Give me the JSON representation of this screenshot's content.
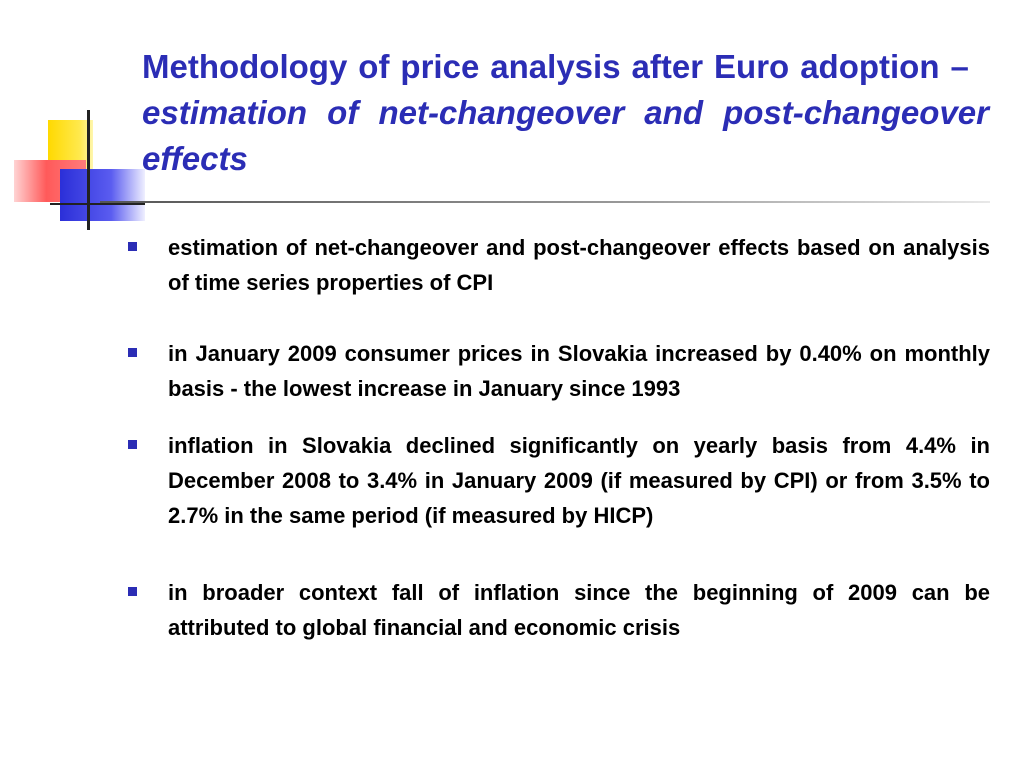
{
  "slide": {
    "title_part1": "Methodology of price analysis after Euro adoption –",
    "title_part2": "estimation of net-changeover and post-changeover effects",
    "bullets": [
      "estimation of net-changeover and post-changeover effects based on analysis of time series properties of CPI",
      "in January 2009 consumer prices in Slovakia increased by 0.40% on monthly basis - the lowest increase in January since 1993",
      "inflation in Slovakia declined significantly on yearly basis from 4.4% in December 2008 to 3.4% in January 2009 (if measured by CPI) or from 3.5% to 2.7% in the same period (if measured by HICP)",
      "in broader context fall of inflation since the beginning of 2009 can be attributed to global financial and economic crisis"
    ]
  },
  "colors": {
    "title": "#2b2db5",
    "bullet_marker": "#2b2db5",
    "body_text": "#000000",
    "logo_yellow": "#ffd900",
    "logo_red": "#ff5a5a",
    "logo_blue": "#2b2fd8"
  },
  "icons": {
    "logo": "square-blocks-logo-icon",
    "bullet": "square-bullet-icon"
  }
}
